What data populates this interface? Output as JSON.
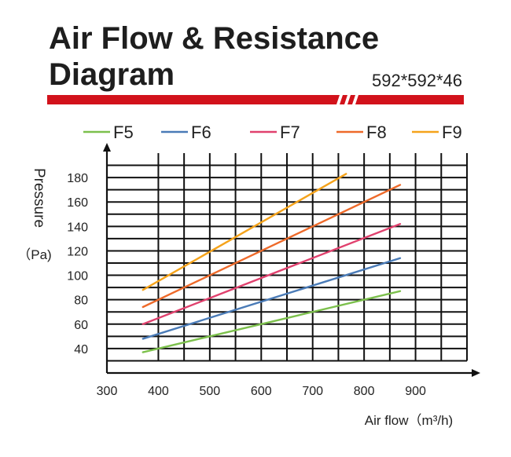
{
  "header": {
    "title": "Air Flow & Resistance Diagram",
    "subtitle": "592*592*46"
  },
  "colors": {
    "banner": "#d2121b",
    "grid": "#111111",
    "F5": "#7cc04c",
    "F6": "#4a7bb7",
    "F7": "#e0416e",
    "F8": "#ee6a2a",
    "F9": "#f5a31b"
  },
  "chart_data": {
    "type": "line",
    "title": "Air Flow & Resistance Diagram",
    "subtitle": "592*592*46",
    "xlabel": "Air flow（m³/h)",
    "ylabel": "Pressure",
    "ylabel_unit": "（Pa)",
    "xlim": [
      300,
      1000
    ],
    "ylim": [
      20,
      200
    ],
    "x_ticks": [
      300,
      400,
      500,
      600,
      700,
      800,
      900
    ],
    "y_ticks": [
      40,
      60,
      80,
      100,
      120,
      140,
      160,
      180
    ],
    "grid": true,
    "legend_position": "top",
    "series": [
      {
        "name": "F5",
        "color": "#7cc04c",
        "x": [
          370,
          870
        ],
        "y": [
          37,
          87
        ]
      },
      {
        "name": "F6",
        "color": "#4a7bb7",
        "x": [
          370,
          870
        ],
        "y": [
          48,
          114
        ]
      },
      {
        "name": "F7",
        "color": "#e0416e",
        "x": [
          370,
          870
        ],
        "y": [
          60,
          142
        ]
      },
      {
        "name": "F8",
        "color": "#ee6a2a",
        "x": [
          370,
          870
        ],
        "y": [
          74,
          174
        ]
      },
      {
        "name": "F9",
        "color": "#f5a31b",
        "x": [
          370,
          765
        ],
        "y": [
          88,
          183
        ]
      }
    ]
  }
}
